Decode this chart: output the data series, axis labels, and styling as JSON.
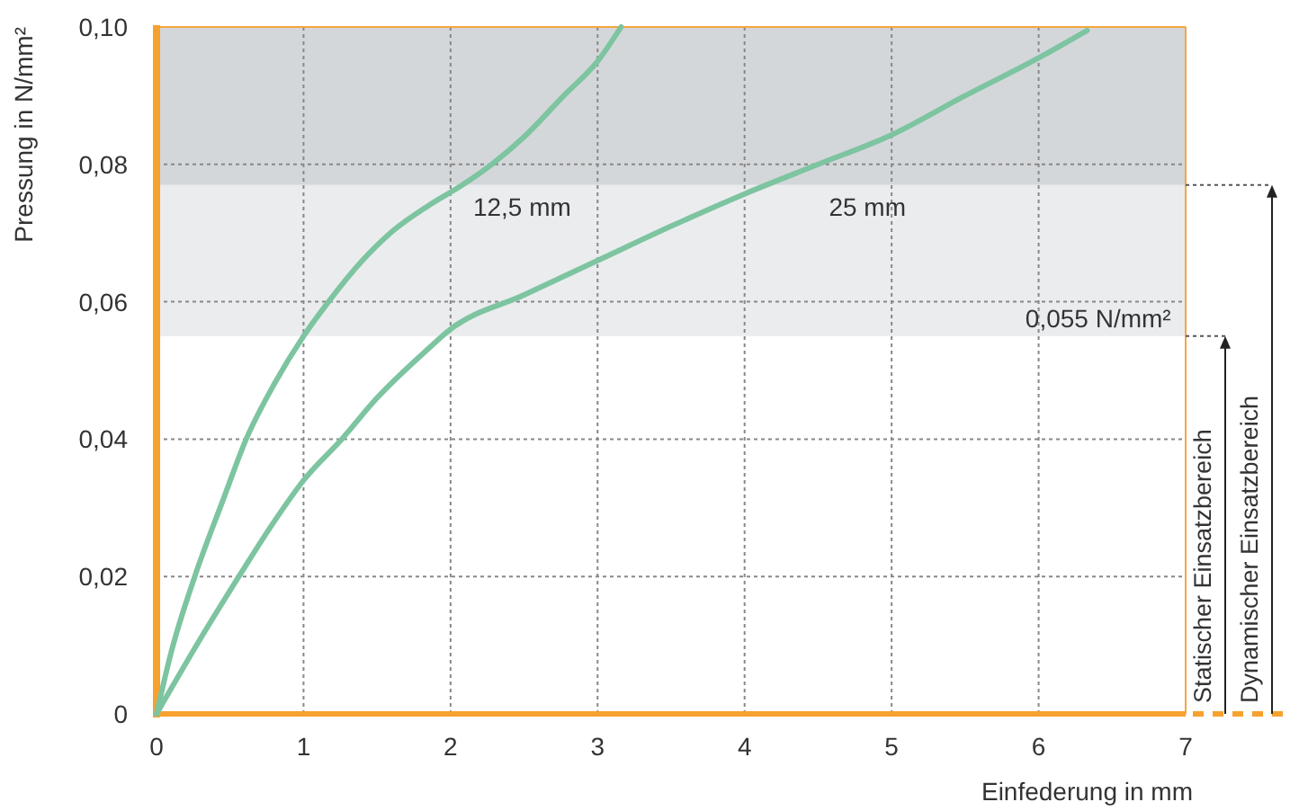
{
  "chart_data": {
    "type": "line",
    "xlabel": "Einfederung in mm",
    "ylabel": "Pressung in N/mm²",
    "xlim": [
      0,
      7
    ],
    "xticks": [
      0,
      1,
      2,
      3,
      4,
      5,
      6,
      7
    ],
    "ylim": [
      0,
      0.1
    ],
    "yticks": [
      0,
      {
        "value": 0.02,
        "label": "0,02"
      },
      {
        "value": 0.04,
        "label": "0,04"
      },
      {
        "value": 0.06,
        "label": "0,06"
      },
      {
        "value": 0.08,
        "label": "0,08"
      },
      {
        "value": 0.1,
        "label": "0,10"
      }
    ],
    "grid": true,
    "legend": false,
    "marker": "none",
    "line_style": "solid",
    "series": [
      {
        "name": "12,5 mm",
        "color": "#7dc4a0",
        "x": [
          0,
          0.1,
          0.26,
          0.45,
          0.61,
          0.8,
          1.0,
          1.17,
          1.4,
          1.59,
          1.85,
          2.08,
          2.28,
          2.5,
          2.77,
          3.0,
          3.16
        ],
        "values": [
          0,
          0.009,
          0.02,
          0.031,
          0.04,
          0.048,
          0.055,
          0.06,
          0.066,
          0.07,
          0.074,
          0.077,
          0.08,
          0.084,
          0.09,
          0.095,
          0.1
        ]
      },
      {
        "name": "25 mm",
        "color": "#7dc4a0",
        "x": [
          0,
          0.3,
          0.56,
          0.8,
          1.0,
          1.26,
          1.5,
          1.84,
          2.0,
          2.5,
          3.0,
          3.5,
          4.0,
          4.5,
          5.0,
          5.5,
          6.0,
          6.33
        ],
        "values": [
          0,
          0.011,
          0.02,
          0.028,
          0.034,
          0.04,
          0.046,
          0.053,
          0.056,
          0.061,
          0.066,
          0.071,
          0.0757,
          0.08,
          0.0843,
          0.09,
          0.0955,
          0.0995
        ]
      }
    ],
    "bands": [
      {
        "axis": "y",
        "from": 0.055,
        "to": 0.077,
        "color": "#ebecee"
      },
      {
        "axis": "y",
        "from": 0.077,
        "to": 0.1,
        "color": "#d4d7da"
      }
    ],
    "annotations": [
      {
        "text": "0,055 N/mm²",
        "x": 6.9,
        "y": 0.055
      },
      "Statischer Einsatzbereich",
      "Dynamischer Einsatzbereich"
    ]
  }
}
